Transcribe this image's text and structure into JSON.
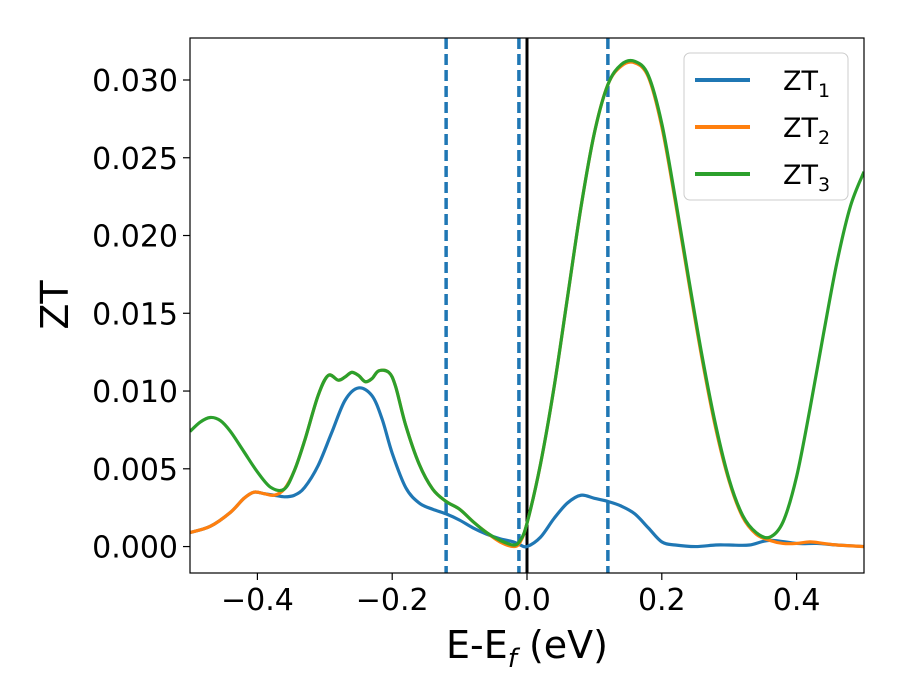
{
  "chart_data": {
    "type": "line",
    "xlabel": {
      "main": "E-E",
      "sub": "f",
      "unit": " (eV)"
    },
    "ylabel": "ZT",
    "xlim": [
      -0.5,
      0.5
    ],
    "ylim": [
      -0.0017,
      0.0327
    ],
    "xticks": [
      -0.4,
      -0.2,
      0.0,
      0.2,
      0.4
    ],
    "xtick_labels": [
      "−0.4",
      "−0.2",
      "0.0",
      "0.2",
      "0.4"
    ],
    "yticks": [
      0.0,
      0.005,
      0.01,
      0.015,
      0.02,
      0.025,
      0.03
    ],
    "ytick_labels": [
      "0.000",
      "0.005",
      "0.010",
      "0.015",
      "0.020",
      "0.025",
      "0.030"
    ],
    "grid": false,
    "legend_position": "top-right",
    "vlines": [
      {
        "x": -0.12,
        "style": "dashed",
        "color": "#1f77b4"
      },
      {
        "x": -0.012,
        "style": "dashed",
        "color": "#1f77b4"
      },
      {
        "x": 0.12,
        "style": "dashed",
        "color": "#1f77b4"
      },
      {
        "x": 0.0,
        "style": "solid",
        "color": "#000000"
      }
    ],
    "series": [
      {
        "name": "ZT",
        "name_sub": "1",
        "color": "#1f77b4",
        "x": [
          -0.5,
          -0.47,
          -0.44,
          -0.42,
          -0.405,
          -0.39,
          -0.375,
          -0.36,
          -0.345,
          -0.33,
          -0.31,
          -0.29,
          -0.27,
          -0.25,
          -0.23,
          -0.215,
          -0.2,
          -0.18,
          -0.16,
          -0.14,
          -0.12,
          -0.1,
          -0.08,
          -0.06,
          -0.04,
          -0.02,
          -0.01,
          0.0,
          0.02,
          0.04,
          0.06,
          0.08,
          0.1,
          0.12,
          0.14,
          0.16,
          0.18,
          0.2,
          0.22,
          0.25,
          0.28,
          0.3,
          0.33,
          0.36,
          0.4,
          0.43,
          0.46,
          0.5
        ],
        "y": [
          0.0009,
          0.0013,
          0.0022,
          0.0031,
          0.0035,
          0.0034,
          0.0033,
          0.0032,
          0.0033,
          0.0038,
          0.0052,
          0.0073,
          0.0094,
          0.0102,
          0.0097,
          0.0082,
          0.006,
          0.0038,
          0.0028,
          0.0024,
          0.0021,
          0.0017,
          0.0012,
          0.0008,
          0.0005,
          0.0003,
          0.0001,
          0.0,
          0.0006,
          0.0018,
          0.0028,
          0.0033,
          0.0031,
          0.0029,
          0.0026,
          0.0021,
          0.0012,
          0.0003,
          0.0001,
          0.0,
          0.0001,
          0.0001,
          0.0001,
          0.0004,
          0.0002,
          0.0002,
          0.0001,
          0.0
        ]
      },
      {
        "name": "ZT",
        "name_sub": "2",
        "color": "#ff7f0e",
        "x": [
          -0.5,
          -0.47,
          -0.44,
          -0.42,
          -0.405,
          -0.39,
          -0.375,
          -0.36,
          -0.345,
          -0.33,
          -0.31,
          -0.295,
          -0.28,
          -0.27,
          -0.26,
          -0.25,
          -0.24,
          -0.23,
          -0.22,
          -0.205,
          -0.195,
          -0.18,
          -0.16,
          -0.14,
          -0.12,
          -0.1,
          -0.08,
          -0.06,
          -0.04,
          -0.02,
          -0.01,
          0.0,
          0.02,
          0.04,
          0.06,
          0.08,
          0.1,
          0.12,
          0.14,
          0.16,
          0.18,
          0.2,
          0.22,
          0.24,
          0.26,
          0.28,
          0.3,
          0.32,
          0.34,
          0.36,
          0.38,
          0.4,
          0.42,
          0.44,
          0.46,
          0.5
        ],
        "y": [
          0.0009,
          0.0013,
          0.0022,
          0.0031,
          0.0035,
          0.0034,
          0.0033,
          0.0037,
          0.0049,
          0.0068,
          0.0097,
          0.011,
          0.0107,
          0.0109,
          0.0112,
          0.011,
          0.0106,
          0.0108,
          0.0113,
          0.0112,
          0.0103,
          0.0078,
          0.0053,
          0.0037,
          0.0029,
          0.0024,
          0.0016,
          0.0009,
          0.0003,
          0.0,
          0.0003,
          0.0015,
          0.0053,
          0.0102,
          0.016,
          0.0218,
          0.0266,
          0.0297,
          0.0309,
          0.0311,
          0.0302,
          0.027,
          0.0222,
          0.017,
          0.012,
          0.0076,
          0.0042,
          0.0019,
          0.0008,
          0.0004,
          0.0002,
          0.0002,
          0.0003,
          0.0002,
          0.0001,
          0.0
        ]
      },
      {
        "name": "ZT",
        "name_sub": "3",
        "color": "#2ca02c",
        "x": [
          -0.5,
          -0.485,
          -0.47,
          -0.455,
          -0.44,
          -0.42,
          -0.4,
          -0.38,
          -0.36,
          -0.345,
          -0.33,
          -0.31,
          -0.295,
          -0.28,
          -0.27,
          -0.26,
          -0.25,
          -0.24,
          -0.23,
          -0.22,
          -0.205,
          -0.195,
          -0.18,
          -0.16,
          -0.14,
          -0.12,
          -0.1,
          -0.08,
          -0.06,
          -0.04,
          -0.02,
          -0.01,
          0.0,
          0.02,
          0.04,
          0.06,
          0.08,
          0.1,
          0.12,
          0.14,
          0.16,
          0.18,
          0.2,
          0.22,
          0.24,
          0.26,
          0.28,
          0.3,
          0.32,
          0.34,
          0.36,
          0.38,
          0.4,
          0.42,
          0.44,
          0.46,
          0.48,
          0.5
        ],
        "y": [
          0.0074,
          0.008,
          0.0083,
          0.0081,
          0.0074,
          0.0061,
          0.0048,
          0.0038,
          0.0037,
          0.0049,
          0.0068,
          0.0097,
          0.011,
          0.0107,
          0.0109,
          0.0112,
          0.011,
          0.0106,
          0.0108,
          0.0113,
          0.0112,
          0.0103,
          0.0078,
          0.0053,
          0.0037,
          0.0029,
          0.0024,
          0.0016,
          0.0009,
          0.0004,
          0.0001,
          0.0004,
          0.0015,
          0.0053,
          0.0102,
          0.016,
          0.0218,
          0.0266,
          0.0297,
          0.031,
          0.0312,
          0.0303,
          0.0272,
          0.0224,
          0.0172,
          0.0122,
          0.0078,
          0.0043,
          0.002,
          0.0009,
          0.0006,
          0.0016,
          0.0045,
          0.0089,
          0.0137,
          0.0183,
          0.0219,
          0.0241
        ]
      }
    ]
  }
}
